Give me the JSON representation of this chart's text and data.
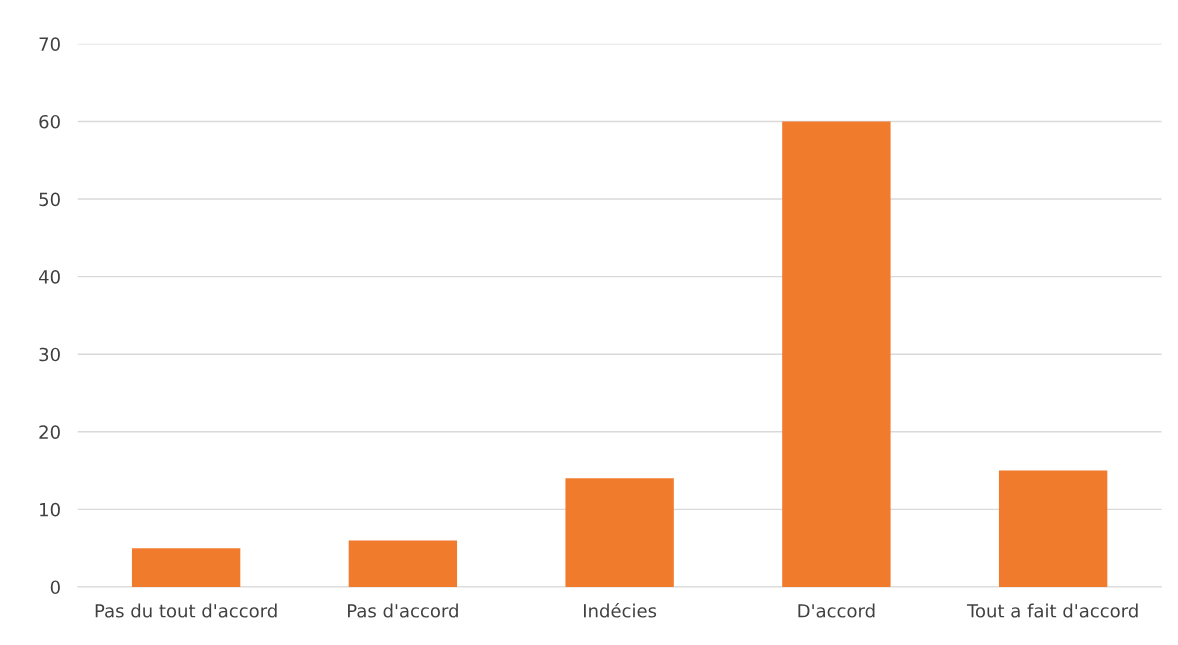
{
  "chart_data": {
    "type": "bar",
    "categories": [
      "Pas du tout d'accord",
      "Pas d'accord",
      "Indécies",
      "D'accord",
      "Tout a fait d'accord"
    ],
    "values": [
      5,
      6,
      14,
      60,
      15
    ],
    "color": "#f07b2c",
    "ylim": [
      0,
      70
    ],
    "yticks": [
      0,
      10,
      20,
      30,
      40,
      50,
      60,
      70
    ],
    "grid": "y"
  }
}
